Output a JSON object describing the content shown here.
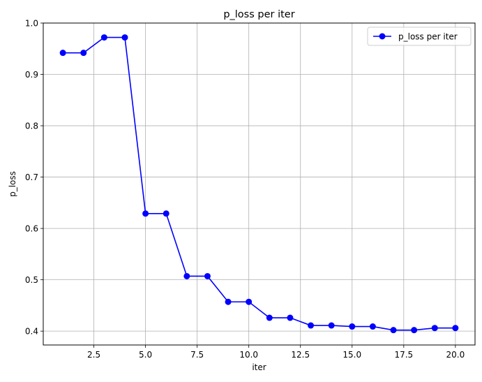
{
  "chart_data": {
    "type": "line",
    "title": "p_loss per iter",
    "xlabel": "iter",
    "ylabel": "p_loss",
    "xlim": [
      0.05,
      20.95
    ],
    "ylim": [
      0.373,
      1.0
    ],
    "xticks": [
      2.5,
      5.0,
      7.5,
      10.0,
      12.5,
      15.0,
      17.5,
      20.0
    ],
    "xtick_labels": [
      "2.5",
      "5.0",
      "7.5",
      "10.0",
      "12.5",
      "15.0",
      "17.5",
      "20.0"
    ],
    "yticks": [
      0.4,
      0.5,
      0.6,
      0.7,
      0.8,
      0.9,
      1.0
    ],
    "ytick_labels": [
      "0.4",
      "0.5",
      "0.6",
      "0.7",
      "0.8",
      "0.9",
      "1.0"
    ],
    "grid": true,
    "legend_position": "top-right",
    "series": [
      {
        "name": "p_loss per iter",
        "color": "#0000ff",
        "marker": "circle",
        "x": [
          1,
          2,
          3,
          4,
          5,
          6,
          7,
          8,
          9,
          10,
          11,
          12,
          13,
          14,
          15,
          16,
          17,
          18,
          19,
          20
        ],
        "y": [
          0.942,
          0.942,
          0.972,
          0.972,
          0.629,
          0.629,
          0.507,
          0.507,
          0.457,
          0.457,
          0.426,
          0.426,
          0.411,
          0.411,
          0.409,
          0.409,
          0.402,
          0.402,
          0.406,
          0.406
        ]
      }
    ]
  }
}
